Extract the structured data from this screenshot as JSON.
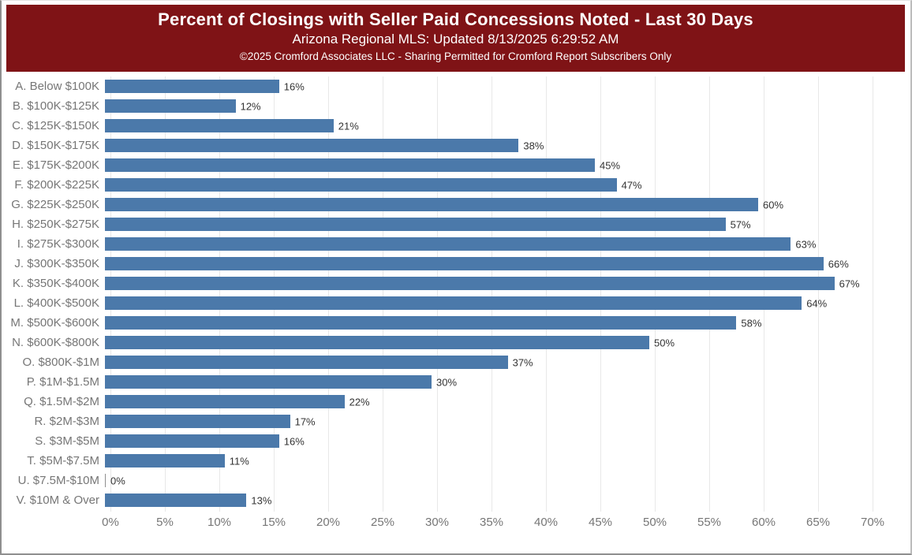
{
  "header": {
    "title": "Percent of Closings with Seller Paid Concessions Noted - Last 30 Days",
    "subtitle": "Arizona Regional MLS: Updated 8/13/2025 6:29:52 AM",
    "copyright": "©2025 Cromford Associates LLC - Sharing Permitted for Cromford Report Subscribers Only",
    "background_color": "#7f1316",
    "text_color": "#ffffff"
  },
  "chart_data": {
    "type": "bar",
    "orientation": "horizontal",
    "title": "Percent of Closings with Seller Paid Concessions Noted - Last 30 Days",
    "categories": [
      "A. Below $100K",
      "B. $100K-$125K",
      "C. $125K-$150K",
      "D. $150K-$175K",
      "E. $175K-$200K",
      "F. $200K-$225K",
      "G. $225K-$250K",
      "H. $250K-$275K",
      "I. $275K-$300K",
      "J. $300K-$350K",
      "K. $350K-$400K",
      "L. $400K-$500K",
      "M. $500K-$600K",
      "N. $600K-$800K",
      "O. $800K-$1M",
      "P. $1M-$1.5M",
      "Q. $1.5M-$2M",
      "R. $2M-$3M",
      "S. $3M-$5M",
      "T. $5M-$7.5M",
      "U. $7.5M-$10M",
      "V. $10M & Over"
    ],
    "values": [
      16,
      12,
      21,
      38,
      45,
      47,
      60,
      57,
      63,
      66,
      67,
      64,
      58,
      50,
      37,
      30,
      22,
      17,
      16,
      11,
      0,
      13
    ],
    "value_labels": [
      "16%",
      "12%",
      "21%",
      "38%",
      "45%",
      "47%",
      "60%",
      "57%",
      "63%",
      "66%",
      "67%",
      "64%",
      "58%",
      "50%",
      "37%",
      "30%",
      "22%",
      "17%",
      "16%",
      "11%",
      "0%",
      "13%"
    ],
    "x_ticks": [
      "0%",
      "5%",
      "10%",
      "15%",
      "20%",
      "25%",
      "30%",
      "35%",
      "40%",
      "45%",
      "50%",
      "55%",
      "60%",
      "65%",
      "70%"
    ],
    "x_tick_values": [
      0,
      5,
      10,
      15,
      20,
      25,
      30,
      35,
      40,
      45,
      50,
      55,
      60,
      65,
      70
    ],
    "xlim": [
      0,
      73.5
    ],
    "grid": true,
    "xlabel": "",
    "ylabel": "",
    "bar_color": "#4b79aa",
    "zero_mark_color": "#8f8f8f",
    "gridline_color": "#e8e8e8",
    "category_label_color": "#767676",
    "value_label_color": "#333333",
    "tick_label_color": "#767676"
  }
}
